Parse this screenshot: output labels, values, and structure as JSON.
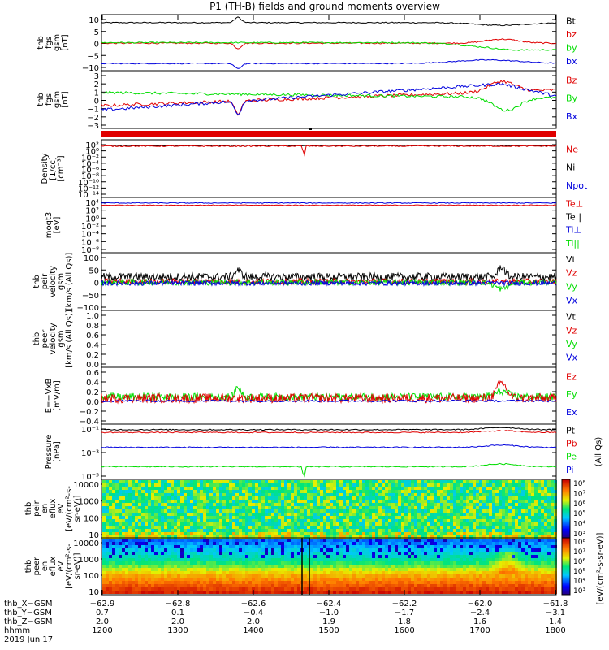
{
  "title": "P1 (TH-B) fields and ground moments overview",
  "colors": {
    "black": "#000000",
    "red": "#e00000",
    "green": "#00dd00",
    "blue": "#0000dd"
  },
  "panels": [
    {
      "id": "fgs",
      "ylabel": [
        "thb",
        "fgs",
        "gsm",
        "[nT]"
      ],
      "yticks": [
        "10",
        "5",
        "0",
        "−5",
        "−10"
      ],
      "legend": [
        {
          "label": "Bt",
          "color": "black"
        },
        {
          "label": "bz",
          "color": "red"
        },
        {
          "label": "by",
          "color": "green"
        },
        {
          "label": "bx",
          "color": "blue"
        }
      ]
    },
    {
      "id": "fgl",
      "ylabel": [
        "thb",
        "fgs",
        "gsm",
        "[nT]"
      ],
      "yticks": [
        "3",
        "2",
        "1",
        "0",
        "−1",
        "−2",
        "−3"
      ],
      "legend": [
        {
          "label": "Bz",
          "color": "red"
        },
        {
          "label": "By",
          "color": "green"
        },
        {
          "label": "Bx",
          "color": "blue"
        }
      ]
    },
    {
      "id": "dens",
      "ylabel": [
        "Density",
        "[1/cc]",
        "[cm⁻³]"
      ],
      "yticks": [
        "10²",
        "10⁰",
        "10⁻²",
        "10⁻⁴",
        "10⁻⁶",
        "10⁻⁸",
        "10⁻¹⁰",
        "10⁻¹²",
        "10⁻¹⁴"
      ],
      "legend": [
        {
          "label": "Ne",
          "color": "red"
        },
        {
          "label": "Ni",
          "color": "black"
        },
        {
          "label": "Npot",
          "color": "blue"
        }
      ]
    },
    {
      "id": "temp",
      "ylabel": [
        "moqt3",
        "[eV]"
      ],
      "yticks": [
        "10⁴",
        "10²",
        "10⁰",
        "10⁻²",
        "10⁻⁴",
        "10⁻⁶",
        "10⁻⁸"
      ],
      "legend": [
        {
          "label": "Te⊥",
          "color": "red"
        },
        {
          "label": "Te||",
          "color": "black"
        },
        {
          "label": "Ti⊥",
          "color": "blue"
        },
        {
          "label": "Ti||",
          "color": "green"
        }
      ]
    },
    {
      "id": "vi",
      "ylabel": [
        "thb",
        "peir",
        "velocity",
        "gsm",
        "[km/s (All Qs)]"
      ],
      "yticks": [
        "100",
        "50",
        "0",
        "−50",
        "−100"
      ],
      "legend": [
        {
          "label": "Vt",
          "color": "black"
        },
        {
          "label": "Vz",
          "color": "red"
        },
        {
          "label": "Vy",
          "color": "green"
        },
        {
          "label": "Vx",
          "color": "blue"
        }
      ]
    },
    {
      "id": "ve",
      "ylabel": [
        "thb",
        "peer",
        "velocity",
        "gsm",
        "[km/s (All Qs)]"
      ],
      "yticks": [
        "1.0",
        "0.8",
        "0.6",
        "0.4",
        "0.2",
        "0.0"
      ],
      "legend": [
        {
          "label": "Vt",
          "color": "black"
        },
        {
          "label": "Vz",
          "color": "red"
        },
        {
          "label": "Vy",
          "color": "green"
        },
        {
          "label": "Vx",
          "color": "blue"
        }
      ]
    },
    {
      "id": "efield",
      "ylabel": [
        "E=−VxB",
        "[mV/m]"
      ],
      "yticks": [
        "0.6",
        "0.4",
        "0.2",
        "0.0",
        "−0.2",
        "−0.4"
      ],
      "legend": [
        {
          "label": "Ez",
          "color": "red"
        },
        {
          "label": "Ey",
          "color": "green"
        },
        {
          "label": "Ex",
          "color": "blue"
        }
      ]
    },
    {
      "id": "press",
      "ylabel": [
        "Pressure",
        "[nPa]"
      ],
      "yticks": [
        "10⁻¹",
        "10⁻³",
        "10⁻⁵"
      ],
      "legend": [
        {
          "label": "Pt",
          "color": "black"
        },
        {
          "label": "Pb",
          "color": "red"
        },
        {
          "label": "Pe",
          "color": "green"
        },
        {
          "label": "Pi",
          "color": "blue"
        }
      ],
      "side_label": "(All Qs)"
    },
    {
      "id": "ispec",
      "ylabel": [
        "thb",
        "peir",
        "en",
        "eflux",
        "eV",
        "[eV/(cm²-s-",
        "sr-eV)]"
      ],
      "yticks": [
        "10000",
        "1000",
        "100",
        "10"
      ],
      "cbar_ticks": [
        "10⁸",
        "10⁷",
        "10⁶",
        "10⁵",
        "10⁴",
        "10³"
      ],
      "cbar_label": "[eV/(cm²-s-sr-eV)]"
    },
    {
      "id": "espec",
      "ylabel": [
        "thb",
        "peer",
        "en",
        "eflux",
        "eV",
        "[eV/(cm²-s-",
        "sr-eV)]"
      ],
      "yticks": [
        "10000",
        "1000",
        "100",
        "10"
      ],
      "cbar_ticks": [
        "10⁸",
        "10⁷",
        "10⁶",
        "10⁵",
        "10⁴",
        "10³"
      ],
      "cbar_label": "[eV/(cm²-s-sr-eV)]"
    }
  ],
  "xaxis": {
    "rows": [
      {
        "label": "thb_X−GSM",
        "values": [
          "−62.9",
          "−62.8",
          "−62.6",
          "−62.4",
          "−62.2",
          "−62.0",
          "−61.8"
        ]
      },
      {
        "label": "thb_Y−GSM",
        "values": [
          "0.7",
          "0.1",
          "−0.4",
          "−1.0",
          "−1.7",
          "−2.4",
          "−3.1"
        ]
      },
      {
        "label": "thb_Z−GSM",
        "values": [
          "2.0",
          "2.0",
          "2.0",
          "1.9",
          "1.8",
          "1.6",
          "1.4"
        ]
      },
      {
        "label": "hhmm",
        "values": [
          "1200",
          "1300",
          "1400",
          "1500",
          "1600",
          "1700",
          "1800"
        ]
      }
    ],
    "date": "2019 Jun 17"
  },
  "chart_data": [
    {
      "type": "line",
      "title": "P1 (TH-B) fields and ground moments overview",
      "ylabel": "thb fgs gsm [nT]",
      "ylim": [
        -10,
        10
      ],
      "x": [
        "1200",
        "1300",
        "1400",
        "1500",
        "1600",
        "1700",
        "1800"
      ],
      "series": [
        {
          "name": "Bt",
          "values": [
            8,
            8,
            8.5,
            8,
            8,
            7.5,
            8
          ]
        },
        {
          "name": "bz",
          "values": [
            0.5,
            0.5,
            0,
            0.5,
            0.5,
            1.5,
            0
          ]
        },
        {
          "name": "by",
          "values": [
            0,
            0,
            0,
            0,
            -0.5,
            -1.5,
            -2.5
          ]
        },
        {
          "name": "bx",
          "values": [
            -7.5,
            -7.5,
            -8,
            -7.5,
            -7,
            -6,
            -7.5
          ]
        }
      ]
    },
    {
      "type": "line",
      "ylabel": "thb fgs gsm [nT]",
      "ylim": [
        -3,
        3
      ],
      "x": [
        "1200",
        "1300",
        "1400",
        "1500",
        "1600",
        "1700",
        "1800"
      ],
      "series": [
        {
          "name": "Bz",
          "values": [
            -0.5,
            -0.2,
            0.3,
            0.8,
            1.2,
            1.8,
            0.8
          ]
        },
        {
          "name": "By",
          "values": [
            0.8,
            0.9,
            0.6,
            0.6,
            0.4,
            -0.5,
            0.2
          ]
        },
        {
          "name": "Bx",
          "values": [
            -1,
            -0.5,
            0.2,
            0.8,
            1.5,
            2.5,
            1.0
          ]
        }
      ]
    },
    {
      "type": "line",
      "ylabel": "Density [1/cc]",
      "ylim": [
        -14,
        2
      ],
      "yscale": "log",
      "x": [
        "1200",
        "1300",
        "1400",
        "1500",
        "1600",
        "1700",
        "1800"
      ],
      "series": [
        {
          "name": "Ne",
          "values": [
            0.1,
            0.1,
            0.1,
            0.1,
            0.1,
            0.1,
            0.1
          ]
        },
        {
          "name": "Ni",
          "values": [
            0.15,
            0.15,
            0.15,
            0.15,
            0.15,
            0.15,
            0.15
          ]
        }
      ]
    },
    {
      "type": "line",
      "ylabel": "moqt3 [eV]",
      "ylim": [
        -8,
        4
      ],
      "yscale": "log",
      "x": [
        "1200",
        "1300",
        "1400",
        "1500",
        "1600",
        "1700",
        "1800"
      ],
      "series": [
        {
          "name": "Te⊥",
          "values": [
            100,
            100,
            100,
            100,
            100,
            100,
            100
          ]
        },
        {
          "name": "Ti⊥",
          "values": [
            300,
            300,
            300,
            300,
            300,
            300,
            300
          ]
        }
      ]
    },
    {
      "type": "line",
      "ylabel": "thb peir velocity gsm [km/s (All Qs)]",
      "ylim": [
        -100,
        100
      ],
      "x": [
        "1200",
        "1300",
        "1400",
        "1500",
        "1600",
        "1700",
        "1800"
      ],
      "series": [
        {
          "name": "Vt",
          "values": [
            15,
            15,
            20,
            15,
            15,
            25,
            15
          ]
        },
        {
          "name": "Vz",
          "values": [
            0,
            0,
            0,
            0,
            0,
            5,
            0
          ]
        },
        {
          "name": "Vy",
          "values": [
            -5,
            -5,
            -5,
            -5,
            -5,
            -10,
            -5
          ]
        },
        {
          "name": "Vx",
          "values": [
            -10,
            -10,
            -10,
            -10,
            -10,
            -15,
            -10
          ]
        }
      ]
    },
    {
      "type": "line",
      "ylabel": "thb peer velocity gsm [km/s (All Qs)]",
      "ylim": [
        0,
        1
      ],
      "series": []
    },
    {
      "type": "line",
      "ylabel": "E=−VxB [mV/m]",
      "ylim": [
        -0.4,
        0.6
      ],
      "x": [
        "1200",
        "1300",
        "1400",
        "1500",
        "1600",
        "1700",
        "1800"
      ],
      "series": [
        {
          "name": "Ez",
          "values": [
            0.05,
            0.05,
            0.05,
            0.05,
            0.05,
            0.2,
            0.05
          ]
        },
        {
          "name": "Ey",
          "values": [
            0.08,
            0.08,
            0.1,
            0.08,
            0.08,
            0.1,
            0.08
          ]
        },
        {
          "name": "Ex",
          "values": [
            0,
            0,
            0,
            0,
            0,
            0,
            0
          ]
        }
      ]
    },
    {
      "type": "line",
      "ylabel": "Pressure [nPa]",
      "yscale": "log",
      "x": [
        "1200",
        "1300",
        "1400",
        "1500",
        "1600",
        "1700",
        "1800"
      ],
      "series": [
        {
          "name": "Pt",
          "values": [
            0.05,
            0.05,
            0.06,
            0.05,
            0.05,
            0.06,
            0.05
          ]
        },
        {
          "name": "Pb",
          "values": [
            0.03,
            0.03,
            0.03,
            0.03,
            0.03,
            0.04,
            0.03
          ]
        },
        {
          "name": "Pe",
          "values": [
            3e-05,
            3e-05,
            3e-05,
            3e-05,
            3e-05,
            5e-05,
            3e-05
          ]
        },
        {
          "name": "Pi",
          "values": [
            0.002,
            0.002,
            0.002,
            0.002,
            0.002,
            0.003,
            0.002
          ]
        }
      ]
    },
    {
      "type": "heatmap",
      "ylabel": "thb peir en eflux eV",
      "yscale": "log",
      "ylim": [
        5,
        20000
      ]
    },
    {
      "type": "heatmap",
      "ylabel": "thb peer en eflux eV",
      "yscale": "log",
      "ylim": [
        5,
        20000
      ]
    }
  ]
}
